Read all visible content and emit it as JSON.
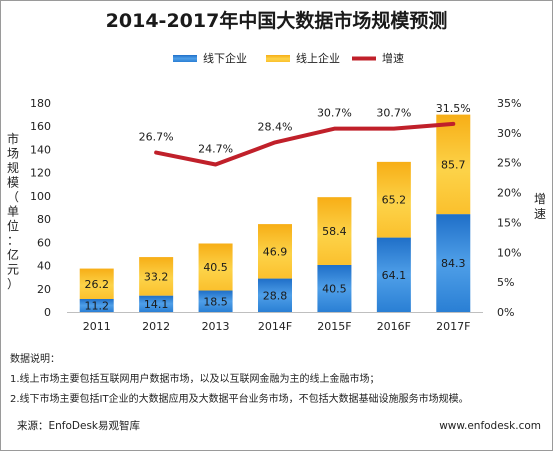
{
  "title": "2014-2017年中国大数据市场规模预测",
  "notes": {
    "heading": "数据说明：",
    "items": [
      "1.线上市场主要包括互联网用户数据市场，以及以互联网金融为主的线上金融市场；",
      "2.线下市场主要包括IT企业的大数据应用及大数据平台业务市场，不包括大数据基础设施服务市场规模。"
    ]
  },
  "source": "来源：EnfoDesk易观智库",
  "website": "www.enfodesk.com",
  "chart_data": {
    "type": "bar",
    "stacked": true,
    "categories": [
      "2011",
      "2012",
      "2013",
      "2014F",
      "2015F",
      "2016F",
      "2017F"
    ],
    "series": [
      {
        "name": "线下企业",
        "values": [
          11.2,
          14.1,
          18.5,
          28.8,
          40.5,
          64.1,
          84.3
        ],
        "color": "#2a7fd4"
      },
      {
        "name": "线上企业",
        "values": [
          26.2,
          33.2,
          40.5,
          46.9,
          58.4,
          65.2,
          85.7
        ],
        "color": "#fbc02d"
      }
    ],
    "line": {
      "name": "增速",
      "values": [
        null,
        26.7,
        24.7,
        28.4,
        30.7,
        30.7,
        31.5
      ],
      "labels": [
        "",
        "26.7%",
        "24.7%",
        "28.4%",
        "30.7%",
        "30.7%",
        "31.5%"
      ],
      "color": "#c0202a",
      "axis": "right"
    },
    "ylabel": "市场规模（单位：亿元）",
    "y2label": "增速",
    "ylim": [
      0,
      180
    ],
    "y2lim": [
      0,
      35
    ],
    "yticks": [
      "0",
      "20",
      "40",
      "60",
      "80",
      "100",
      "120",
      "140",
      "160",
      "180"
    ],
    "y2ticks": [
      "0%",
      "5%",
      "10%",
      "15%",
      "20%",
      "25%",
      "30%",
      "35%"
    ],
    "legend": "top",
    "grid": false
  }
}
